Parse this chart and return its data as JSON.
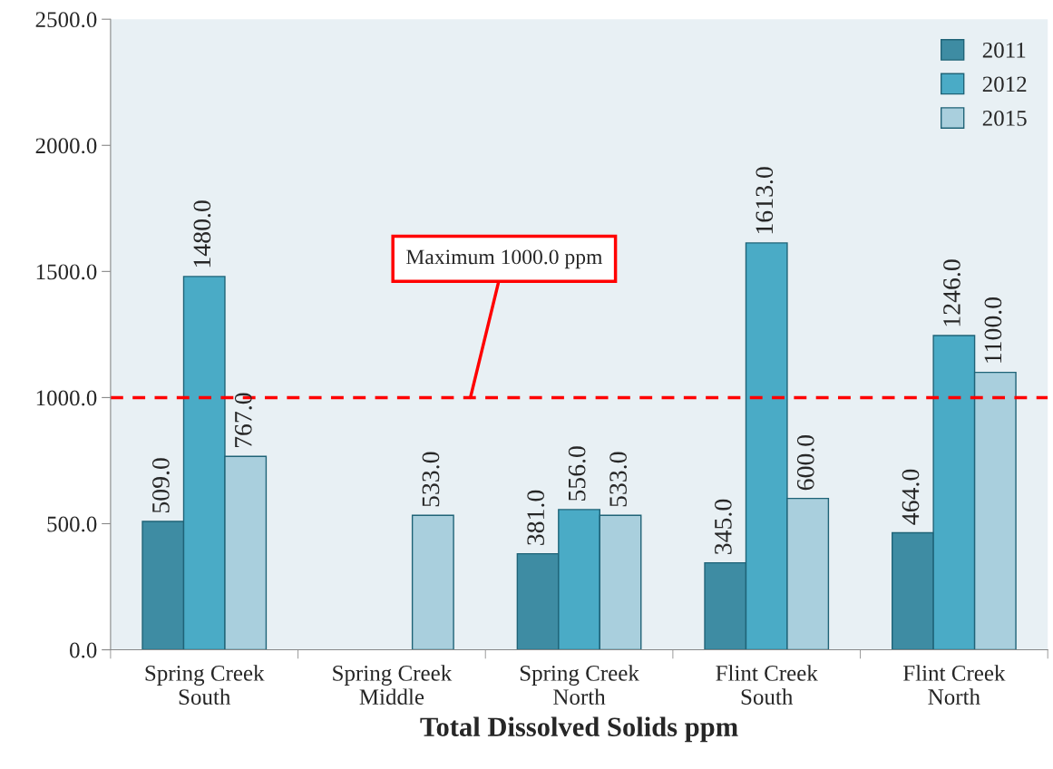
{
  "chart_data": {
    "type": "bar",
    "categories": [
      "Spring Creek\nSouth",
      "Spring Creek\nMiddle",
      "Spring Creek\nNorth",
      "Flint Creek\nSouth",
      "Flint Creek\nNorth"
    ],
    "series": [
      {
        "name": "2011",
        "color": "#3e8ca3",
        "values": [
          509,
          null,
          381,
          345,
          464
        ],
        "value_labels": [
          "509.0",
          null,
          "381.0",
          "345.0",
          "464.0"
        ]
      },
      {
        "name": "2012",
        "color": "#4aabc6",
        "values": [
          1480,
          null,
          556,
          1613,
          1246
        ],
        "value_labels": [
          "1480.0",
          null,
          "556.0",
          "1613.0",
          "1246.0"
        ]
      },
      {
        "name": "2015",
        "color": "#a9cfdd",
        "values": [
          767,
          533,
          533,
          600,
          1100
        ],
        "value_labels": [
          "767.0",
          "533.0",
          "533.0",
          "600.0",
          "1100.0"
        ]
      }
    ],
    "xlabel": "Total Dissolved Solids ppm",
    "ylim": [
      0,
      2500
    ],
    "yticks": [
      {
        "value": 0,
        "label": "0.0"
      },
      {
        "value": 500,
        "label": "500.0"
      },
      {
        "value": 1000,
        "label": "1000.0"
      },
      {
        "value": 1500,
        "label": "1500.0"
      },
      {
        "value": 2000,
        "label": "2000.0"
      },
      {
        "value": 2500,
        "label": "2500.0"
      }
    ],
    "ref_lines": [
      {
        "axis": "y",
        "value": 1000,
        "label": "Maximum 1000.0 ppm",
        "color": "#ff0000",
        "line_style": "dashed"
      }
    ],
    "legend": "top right",
    "grid": false
  }
}
